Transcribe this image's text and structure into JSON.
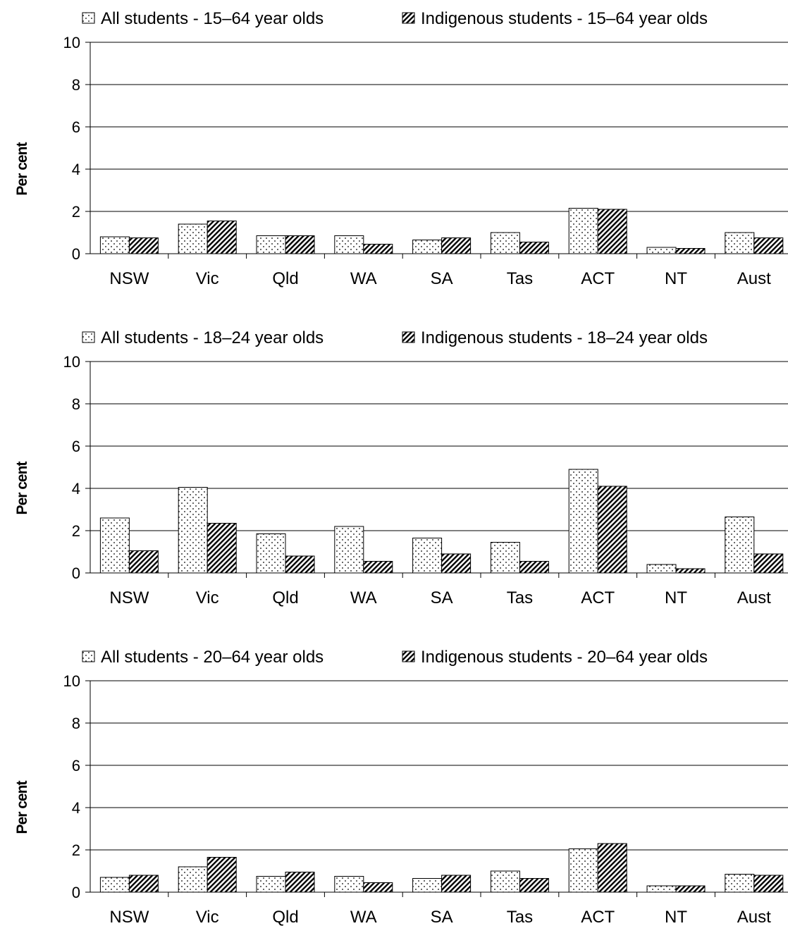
{
  "chart_data": [
    {
      "type": "bar",
      "ylabel": "Per cent",
      "ylim": [
        0,
        10
      ],
      "yticks": [
        "0",
        "2",
        "4",
        "6",
        "8",
        "10"
      ],
      "grid": true,
      "legend_position": "top",
      "categories": [
        "NSW",
        "Vic",
        "Qld",
        "WA",
        "SA",
        "Tas",
        "ACT",
        "NT",
        "Aust"
      ],
      "series": [
        {
          "name": "All students - 15–64 year olds",
          "pattern": "dots",
          "values": [
            0.8,
            1.4,
            0.85,
            0.85,
            0.65,
            1.0,
            2.15,
            0.3,
            1.0
          ]
        },
        {
          "name": "Indigenous students - 15–64 year olds",
          "pattern": "hatch",
          "values": [
            0.75,
            1.55,
            0.85,
            0.45,
            0.75,
            0.55,
            2.1,
            0.25,
            0.75
          ]
        }
      ]
    },
    {
      "type": "bar",
      "ylabel": "Per cent",
      "ylim": [
        0,
        10
      ],
      "yticks": [
        "0",
        "2",
        "4",
        "6",
        "8",
        "10"
      ],
      "grid": true,
      "legend_position": "top",
      "categories": [
        "NSW",
        "Vic",
        "Qld",
        "WA",
        "SA",
        "Tas",
        "ACT",
        "NT",
        "Aust"
      ],
      "series": [
        {
          "name": "All students - 18–24 year olds",
          "pattern": "dots",
          "values": [
            2.6,
            4.05,
            1.85,
            2.2,
            1.65,
            1.45,
            4.9,
            0.4,
            2.65
          ]
        },
        {
          "name": "Indigenous students - 18–24 year olds",
          "pattern": "hatch",
          "values": [
            1.05,
            2.35,
            0.8,
            0.55,
            0.9,
            0.55,
            4.1,
            0.2,
            0.9
          ]
        }
      ]
    },
    {
      "type": "bar",
      "ylabel": "Per cent",
      "ylim": [
        0,
        10
      ],
      "yticks": [
        "0",
        "2",
        "4",
        "6",
        "8",
        "10"
      ],
      "grid": true,
      "legend_position": "top",
      "categories": [
        "NSW",
        "Vic",
        "Qld",
        "WA",
        "SA",
        "Tas",
        "ACT",
        "NT",
        "Aust"
      ],
      "series": [
        {
          "name": "All students - 20–64 year olds",
          "pattern": "dots",
          "values": [
            0.7,
            1.2,
            0.75,
            0.75,
            0.65,
            1.0,
            2.05,
            0.3,
            0.85
          ]
        },
        {
          "name": "Indigenous students - 20–64 year olds",
          "pattern": "hatch",
          "values": [
            0.8,
            1.65,
            0.95,
            0.45,
            0.8,
            0.65,
            2.3,
            0.3,
            0.8
          ]
        }
      ]
    }
  ]
}
